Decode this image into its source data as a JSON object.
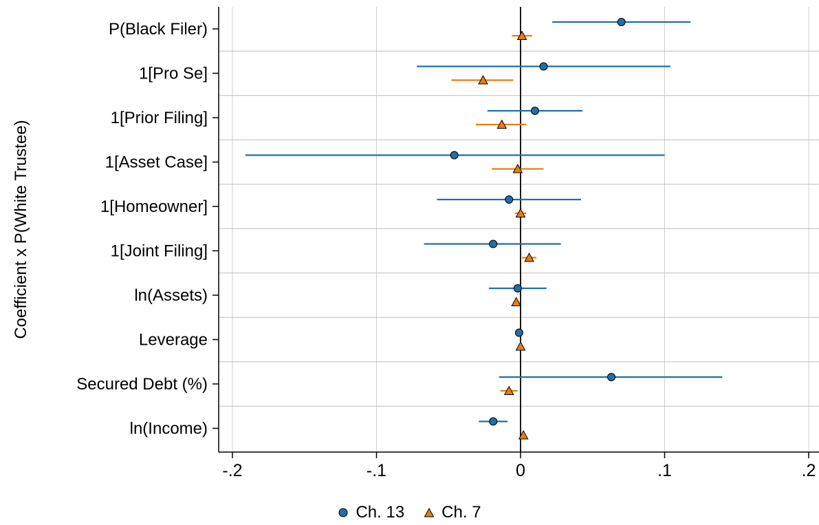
{
  "chart_data": {
    "type": "scatter",
    "subtype": "coefficient-plot",
    "ylabel": "Coefficient x P(White Trustee)",
    "xlabel": "",
    "xlim": [
      -0.2,
      0.2
    ],
    "x_ticks": [
      -0.2,
      -0.1,
      0,
      0.1,
      0.2
    ],
    "x_tick_labels": [
      "-.2",
      "-.1",
      "0",
      ".1",
      ".2"
    ],
    "categories": [
      "P(Black Filer)",
      "1[Pro Se]",
      "1[Prior Filing]",
      "1[Asset Case]",
      "1[Homeowner]",
      "1[Joint Filing]",
      "ln(Assets)",
      "Leverage",
      "Secured Debt (%)",
      "ln(Income)"
    ],
    "reference_line": 0,
    "grid": true,
    "legend_position": "bottom",
    "series": [
      {
        "name": "Ch. 13",
        "marker": "circle",
        "color": "#1f6fa8",
        "points": [
          {
            "est": 0.07,
            "lo": 0.022,
            "hi": 0.118
          },
          {
            "est": 0.016,
            "lo": -0.072,
            "hi": 0.104
          },
          {
            "est": 0.01,
            "lo": -0.023,
            "hi": 0.043
          },
          {
            "est": -0.046,
            "lo": -0.191,
            "hi": 0.1
          },
          {
            "est": -0.008,
            "lo": -0.058,
            "hi": 0.042
          },
          {
            "est": -0.019,
            "lo": -0.067,
            "hi": 0.028
          },
          {
            "est": -0.002,
            "lo": -0.022,
            "hi": 0.018
          },
          {
            "est": -0.001,
            "lo": -0.001,
            "hi": -0.001
          },
          {
            "est": 0.063,
            "lo": -0.015,
            "hi": 0.14
          },
          {
            "est": -0.019,
            "lo": -0.029,
            "hi": -0.009
          }
        ]
      },
      {
        "name": "Ch. 7",
        "marker": "triangle",
        "color": "#e87d10",
        "points": [
          {
            "est": 0.001,
            "lo": -0.006,
            "hi": 0.008
          },
          {
            "est": -0.026,
            "lo": -0.048,
            "hi": -0.005
          },
          {
            "est": -0.013,
            "lo": -0.031,
            "hi": 0.004
          },
          {
            "est": -0.002,
            "lo": -0.02,
            "hi": 0.016
          },
          {
            "est": 0.0,
            "lo": -0.004,
            "hi": 0.004
          },
          {
            "est": 0.006,
            "lo": 0.001,
            "hi": 0.011
          },
          {
            "est": -0.003,
            "lo": -0.005,
            "hi": -0.001
          },
          {
            "est": 0.0,
            "lo": -0.001,
            "hi": 0.001
          },
          {
            "est": -0.008,
            "lo": -0.014,
            "hi": -0.002
          },
          {
            "est": 0.002,
            "lo": 0.001,
            "hi": 0.003
          }
        ]
      }
    ]
  }
}
